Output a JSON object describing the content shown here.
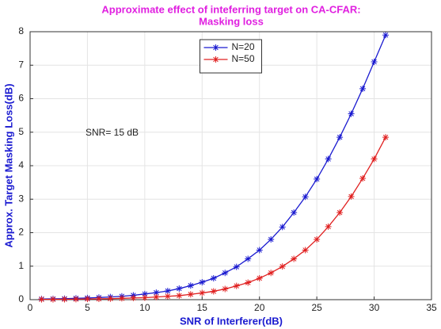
{
  "chart_data": {
    "type": "line",
    "title": [
      "Approximate effect of inteferring target on CA-CFAR:",
      "Masking loss"
    ],
    "x_label": "SNR of Interferer(dB)",
    "y_label": "Approx. Target Masking Loss(dB)",
    "annotation": "SNR= 15 dB",
    "x": [
      1,
      2,
      3,
      4,
      5,
      6,
      7,
      8,
      9,
      10,
      11,
      12,
      13,
      14,
      15,
      16,
      17,
      18,
      19,
      20,
      21,
      22,
      23,
      24,
      25,
      26,
      27,
      28,
      29,
      30,
      31
    ],
    "series": [
      {
        "name": "N=20",
        "color": "#1a1ad0",
        "values": [
          0.02,
          0.025,
          0.03,
          0.04,
          0.05,
          0.065,
          0.08,
          0.1,
          0.13,
          0.17,
          0.21,
          0.26,
          0.33,
          0.42,
          0.52,
          0.64,
          0.8,
          0.98,
          1.22,
          1.48,
          1.8,
          2.17,
          2.6,
          3.07,
          3.6,
          4.2,
          4.85,
          5.55,
          6.3,
          7.1,
          7.9
        ]
      },
      {
        "name": "N=50",
        "color": "#e02020",
        "values": [
          0.008,
          0.01,
          0.012,
          0.015,
          0.02,
          0.025,
          0.03,
          0.04,
          0.05,
          0.06,
          0.08,
          0.1,
          0.12,
          0.16,
          0.2,
          0.25,
          0.32,
          0.41,
          0.51,
          0.64,
          0.8,
          0.99,
          1.22,
          1.48,
          1.8,
          2.18,
          2.6,
          3.08,
          3.62,
          4.2,
          4.85
        ]
      }
    ],
    "xlim": [
      0,
      35
    ],
    "xticks": [
      0,
      5,
      10,
      15,
      20,
      25,
      30,
      35
    ],
    "ylim": [
      0,
      8
    ],
    "yticks": [
      0,
      1,
      2,
      3,
      4,
      5,
      6,
      7,
      8
    ],
    "grid": true,
    "legend": "upper center"
  }
}
